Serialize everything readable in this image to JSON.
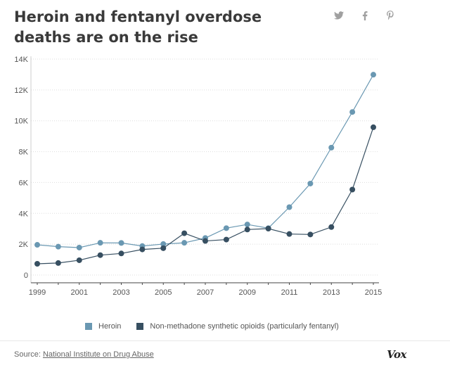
{
  "header": {
    "title": "Heroin and fentanyl overdose deaths are on the rise"
  },
  "social": [
    {
      "name": "twitter-icon",
      "glyph": "🐦"
    },
    {
      "name": "facebook-icon",
      "glyph": "f"
    },
    {
      "name": "pinterest-icon",
      "glyph": "p"
    }
  ],
  "colors": {
    "heroin": "#6a98b2",
    "synthetic": "#374f61",
    "axis": "#555555",
    "grid": "#dddddd"
  },
  "chart_data": {
    "type": "line",
    "title": "Heroin and fentanyl overdose deaths are on the rise",
    "xlabel": "",
    "ylabel": "",
    "x": [
      1999,
      2000,
      2001,
      2002,
      2003,
      2004,
      2005,
      2006,
      2007,
      2008,
      2009,
      2010,
      2011,
      2012,
      2013,
      2014,
      2015
    ],
    "xticks": [
      1999,
      2001,
      2003,
      2005,
      2007,
      2009,
      2011,
      2013,
      2015
    ],
    "yticks": [
      0,
      2000,
      4000,
      6000,
      8000,
      10000,
      12000,
      14000
    ],
    "ytick_labels": [
      "0",
      "2K",
      "4K",
      "6K",
      "8K",
      "10K",
      "12K",
      "14K"
    ],
    "ylim": [
      0,
      14000
    ],
    "grid": true,
    "legend_position": "bottom",
    "series": [
      {
        "name": "Heroin",
        "values": [
          1960,
          1840,
          1780,
          2090,
          2080,
          1880,
          2010,
          2090,
          2400,
          3040,
          3280,
          3040,
          4400,
          5930,
          8260,
          10570,
          12990
        ]
      },
      {
        "name": "Non-methadone synthetic opioids (particularly fentanyl)",
        "values": [
          730,
          780,
          960,
          1290,
          1400,
          1660,
          1740,
          2710,
          2210,
          2300,
          2950,
          3010,
          2660,
          2630,
          3110,
          5540,
          9580
        ]
      }
    ]
  },
  "footer": {
    "source_label": "Source:",
    "source_link": "National Institute on Drug Abuse",
    "logo": "Vox"
  }
}
